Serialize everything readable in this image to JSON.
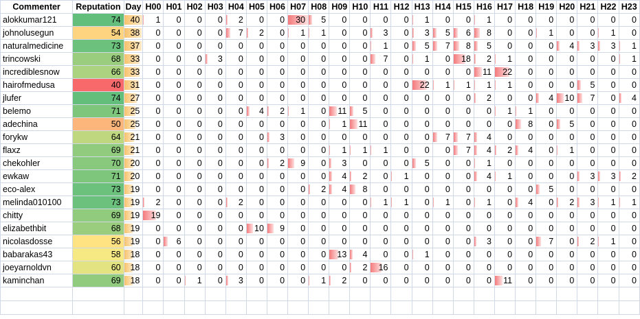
{
  "header": [
    "Commenter",
    "Reputation",
    "Day",
    "H00",
    "H01",
    "H02",
    "H03",
    "H04",
    "H05",
    "H06",
    "H07",
    "H08",
    "H09",
    "H10",
    "H11",
    "H12",
    "H13",
    "H14",
    "H15",
    "H16",
    "H17",
    "H18",
    "H19",
    "H20",
    "H21",
    "H22",
    "H23"
  ],
  "colors": {
    "rep_low": "#f8696b",
    "rep_mid": "#ffeb84",
    "rep_high": "#63be7b",
    "day_bar": "#f7c26b",
    "hour_bar": "#f47a7c",
    "grid": "#d0d7e5"
  },
  "scales": {
    "rep_min": 40,
    "rep_max": 74,
    "day_max": 40,
    "hour_max": 30
  },
  "rows": [
    {
      "name": "alokkumar121",
      "rep": 74,
      "day": 40,
      "hours": [
        1,
        0,
        0,
        0,
        2,
        0,
        0,
        30,
        5,
        0,
        0,
        0,
        0,
        1,
        0,
        0,
        1,
        0,
        0,
        0,
        0,
        0,
        0,
        0
      ]
    },
    {
      "name": "johnolusegun",
      "rep": 54,
      "day": 38,
      "hours": [
        0,
        0,
        0,
        0,
        7,
        2,
        0,
        1,
        1,
        0,
        0,
        3,
        0,
        3,
        5,
        6,
        8,
        0,
        0,
        1,
        0,
        0,
        1,
        0
      ]
    },
    {
      "name": "naturalmedicine",
      "rep": 73,
      "day": 37,
      "hours": [
        0,
        0,
        0,
        0,
        0,
        0,
        0,
        0,
        0,
        0,
        0,
        1,
        0,
        5,
        7,
        8,
        5,
        0,
        0,
        0,
        4,
        3,
        3,
        1
      ]
    },
    {
      "name": "trincowski",
      "rep": 68,
      "day": 33,
      "hours": [
        0,
        0,
        0,
        3,
        0,
        0,
        0,
        0,
        0,
        0,
        0,
        7,
        0,
        1,
        0,
        18,
        2,
        1,
        0,
        0,
        0,
        0,
        0,
        1
      ]
    },
    {
      "name": "incrediblesnow",
      "rep": 66,
      "day": 33,
      "hours": [
        0,
        0,
        0,
        0,
        0,
        0,
        0,
        0,
        0,
        0,
        0,
        0,
        0,
        0,
        0,
        0,
        11,
        22,
        0,
        0,
        0,
        0,
        0,
        0
      ]
    },
    {
      "name": "hairofmedusa",
      "rep": 40,
      "day": 31,
      "hours": [
        0,
        0,
        0,
        0,
        0,
        0,
        0,
        0,
        0,
        0,
        0,
        0,
        0,
        22,
        1,
        1,
        1,
        1,
        0,
        0,
        0,
        5,
        0,
        0
      ]
    },
    {
      "name": "jlufer",
      "rep": 74,
      "day": 27,
      "hours": [
        0,
        0,
        0,
        0,
        0,
        0,
        0,
        0,
        0,
        0,
        0,
        0,
        0,
        0,
        0,
        0,
        2,
        0,
        0,
        4,
        10,
        7,
        0,
        4
      ]
    },
    {
      "name": "belemo",
      "rep": 71,
      "day": 25,
      "hours": [
        0,
        0,
        0,
        0,
        0,
        4,
        2,
        1,
        0,
        11,
        5,
        0,
        0,
        0,
        0,
        0,
        0,
        1,
        1,
        0,
        0,
        0,
        0,
        0
      ]
    },
    {
      "name": "adechina",
      "rep": 50,
      "day": 25,
      "hours": [
        0,
        0,
        0,
        0,
        0,
        0,
        0,
        0,
        0,
        1,
        11,
        0,
        0,
        0,
        0,
        0,
        0,
        0,
        8,
        0,
        5,
        0,
        0,
        0
      ]
    },
    {
      "name": "forykw",
      "rep": 64,
      "day": 21,
      "hours": [
        0,
        0,
        0,
        0,
        0,
        0,
        3,
        0,
        0,
        0,
        0,
        0,
        0,
        0,
        7,
        7,
        4,
        0,
        0,
        0,
        0,
        0,
        0,
        0
      ]
    },
    {
      "name": "flaxz",
      "rep": 69,
      "day": 21,
      "hours": [
        0,
        0,
        0,
        0,
        0,
        0,
        0,
        0,
        0,
        1,
        1,
        1,
        0,
        0,
        0,
        7,
        4,
        2,
        4,
        0,
        1,
        0,
        0,
        0
      ]
    },
    {
      "name": "chekohler",
      "rep": 70,
      "day": 20,
      "hours": [
        0,
        0,
        0,
        0,
        0,
        0,
        2,
        9,
        0,
        3,
        0,
        0,
        0,
        5,
        0,
        0,
        1,
        0,
        0,
        0,
        0,
        0,
        0,
        0
      ]
    },
    {
      "name": "ewkaw",
      "rep": 71,
      "day": 20,
      "hours": [
        0,
        0,
        0,
        0,
        0,
        0,
        0,
        0,
        0,
        4,
        2,
        0,
        1,
        0,
        0,
        0,
        4,
        1,
        0,
        0,
        0,
        3,
        3,
        2
      ]
    },
    {
      "name": "eco-alex",
      "rep": 73,
      "day": 19,
      "hours": [
        0,
        0,
        0,
        0,
        0,
        0,
        0,
        0,
        2,
        4,
        8,
        0,
        0,
        0,
        0,
        0,
        0,
        0,
        0,
        5,
        0,
        0,
        0,
        0
      ]
    },
    {
      "name": "melinda010100",
      "rep": 73,
      "day": 19,
      "hours": [
        2,
        0,
        0,
        0,
        2,
        0,
        0,
        0,
        0,
        0,
        0,
        1,
        1,
        0,
        1,
        0,
        1,
        0,
        4,
        0,
        2,
        3,
        1,
        1
      ]
    },
    {
      "name": "chitty",
      "rep": 69,
      "day": 19,
      "hours": [
        19,
        0,
        0,
        0,
        0,
        0,
        0,
        0,
        0,
        0,
        0,
        0,
        0,
        0,
        0,
        0,
        0,
        0,
        0,
        0,
        0,
        0,
        0,
        0
      ]
    },
    {
      "name": "elizabethbit",
      "rep": 68,
      "day": 19,
      "hours": [
        0,
        0,
        0,
        0,
        0,
        10,
        9,
        0,
        0,
        0,
        0,
        0,
        0,
        0,
        0,
        0,
        0,
        0,
        0,
        0,
        0,
        0,
        0,
        0
      ]
    },
    {
      "name": "nicolasdosse",
      "rep": 56,
      "day": 19,
      "hours": [
        0,
        6,
        0,
        0,
        0,
        0,
        0,
        0,
        0,
        0,
        0,
        0,
        0,
        0,
        0,
        0,
        3,
        0,
        0,
        7,
        0,
        2,
        1,
        0
      ]
    },
    {
      "name": "babarakas43",
      "rep": 58,
      "day": 18,
      "hours": [
        0,
        0,
        0,
        0,
        0,
        0,
        0,
        0,
        0,
        13,
        4,
        0,
        0,
        1,
        0,
        0,
        0,
        0,
        0,
        0,
        0,
        0,
        0,
        0
      ]
    },
    {
      "name": "joeyarnoldvn",
      "rep": 60,
      "day": 18,
      "hours": [
        0,
        0,
        0,
        0,
        0,
        0,
        0,
        0,
        0,
        0,
        2,
        16,
        0,
        0,
        0,
        0,
        0,
        0,
        0,
        0,
        0,
        0,
        0,
        0
      ]
    },
    {
      "name": "kaminchan",
      "rep": 69,
      "day": 18,
      "hours": [
        0,
        0,
        1,
        0,
        3,
        0,
        0,
        0,
        1,
        2,
        0,
        0,
        0,
        0,
        0,
        0,
        0,
        11,
        0,
        0,
        0,
        0,
        0,
        0
      ]
    }
  ]
}
